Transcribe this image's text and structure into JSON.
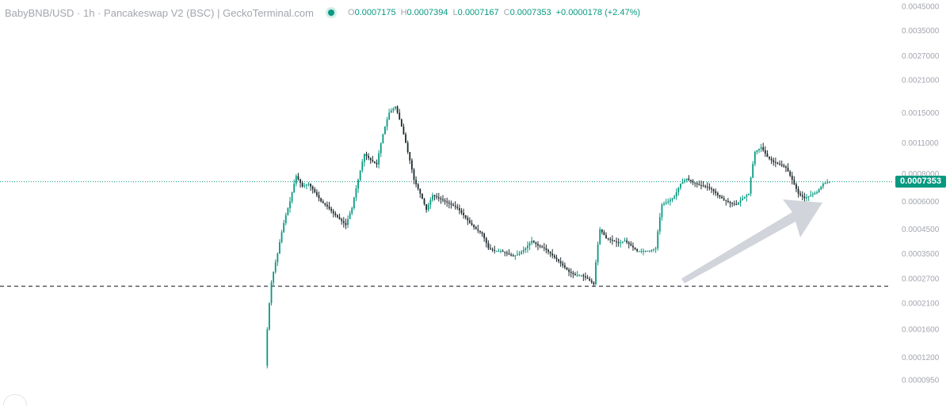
{
  "header": {
    "pair": "BabyBNB/USD",
    "interval": "1h",
    "exchange": "Pancakeswap V2 (BSC)",
    "source": "GeckoTerminal.com",
    "ohlc": {
      "o_label": "O",
      "o_value": "0.0007175",
      "h_label": "H",
      "h_value": "0.0007394",
      "l_label": "L",
      "l_value": "0.0007167",
      "c_label": "C",
      "c_value": "0.0007353",
      "change": "+0.0000178 (+2.47%)"
    }
  },
  "last_price": {
    "label": "0.0007353",
    "value": 0.0007353
  },
  "support_line": {
    "value": 0.00025
  },
  "colors": {
    "up": "#089981",
    "down": "#1f2a2e",
    "price_line": "#089981",
    "support": "#3a3f47",
    "axis_text": "#a3a6af",
    "arrow": "#c9ccd5"
  },
  "annotation": {
    "type": "arrow",
    "icon": "trend-up-arrow-icon"
  },
  "chart_data": {
    "type": "line",
    "subtype": "candlestick",
    "title": "BabyBNB/USD · 1h · Pancakeswap V2 (BSC) | GeckoTerminal.com",
    "xlabel": "",
    "ylabel": "",
    "y_scale": "log",
    "grid": false,
    "legend": "none",
    "y_ticks": [
      {
        "label": "0.0045000",
        "value": 0.0045
      },
      {
        "label": "0.0035000",
        "value": 0.0035
      },
      {
        "label": "0.0027000",
        "value": 0.0027
      },
      {
        "label": "0.0021000",
        "value": 0.0021
      },
      {
        "label": "0.0015000",
        "value": 0.0015
      },
      {
        "label": "0.0011000",
        "value": 0.0011
      },
      {
        "label": "0.0008000",
        "value": 0.0008
      },
      {
        "label": "0.0006000",
        "value": 0.0006
      },
      {
        "label": "0.0004500",
        "value": 0.00045
      },
      {
        "label": "0.0003500",
        "value": 0.00035
      },
      {
        "label": "0.0002700",
        "value": 0.00027
      },
      {
        "label": "0.0002100",
        "value": 0.00021
      },
      {
        "label": "0.0001600",
        "value": 0.00016
      },
      {
        "label": "0.0001200",
        "value": 0.00012
      },
      {
        "label": "0.0000950",
        "value": 9.5e-05
      }
    ],
    "series": [
      {
        "values": [
          0.00011,
          0.00026,
          0.00035,
          0.00048,
          0.0006,
          0.00078,
          0.0007,
          0.00072,
          0.00066,
          0.0006,
          0.00057,
          0.00053,
          0.0005,
          0.00047,
          0.00056,
          0.00075,
          0.00098,
          0.00092,
          0.00088,
          0.0012,
          0.0015,
          0.0016,
          0.0013,
          0.001,
          0.00075,
          0.00065,
          0.00055,
          0.00064,
          0.00062,
          0.0006,
          0.00058,
          0.00056,
          0.00052,
          0.00048,
          0.00045,
          0.00043,
          0.00037,
          0.00036,
          0.00036,
          0.00035,
          0.00034,
          0.00035,
          0.00037,
          0.0004,
          0.00038,
          0.00037,
          0.00035,
          0.00033,
          0.00031,
          0.00029,
          0.00028,
          0.00028,
          0.00027,
          0.000255,
          0.00045,
          0.00041,
          0.0004,
          0.00039,
          0.0004,
          0.00038,
          0.00036,
          0.00036,
          0.00036,
          0.00037,
          0.00058,
          0.0006,
          0.00063,
          0.00072,
          0.00076,
          0.00073,
          0.00071,
          0.0007,
          0.00068,
          0.00064,
          0.00061,
          0.00059,
          0.00058,
          0.00062,
          0.00065,
          0.001,
          0.00105,
          0.00095,
          0.0009,
          0.00088,
          0.00085,
          0.00075,
          0.00065,
          0.00062,
          0.00064,
          0.00066,
          0.00072,
          0.0007353
        ]
      }
    ]
  }
}
